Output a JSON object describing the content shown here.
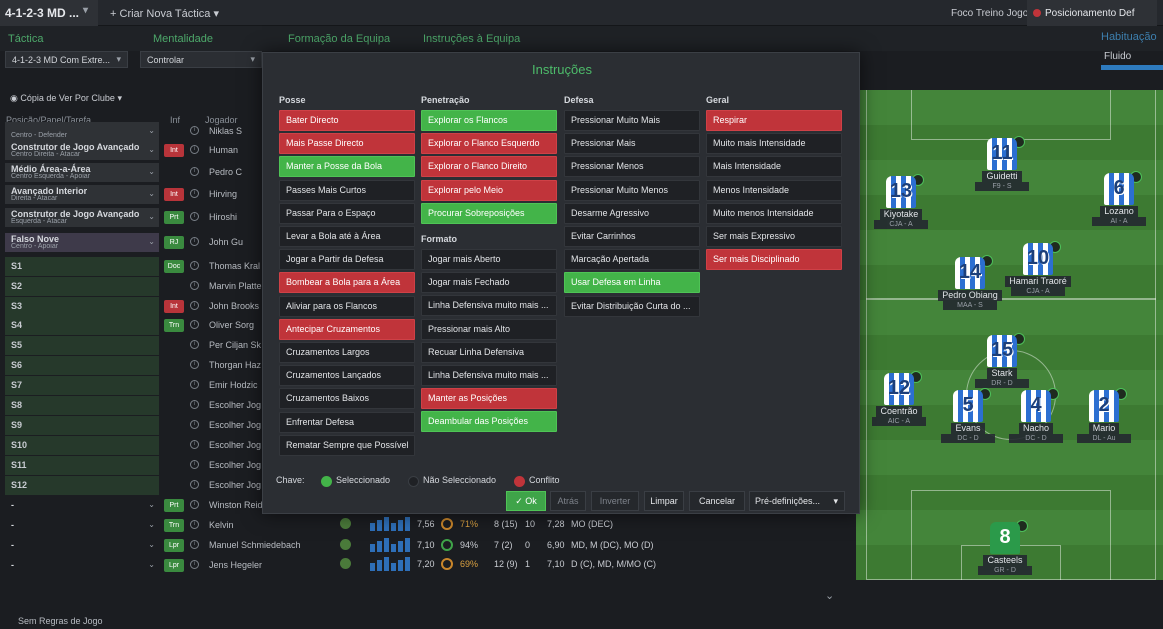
{
  "topbar": {
    "tactic_name": "4-1-2-3 MD ...",
    "new_tactic": "Criar Nova Táctica",
    "focus": "Foco Treino Jogo",
    "position": "Posicionamento Def"
  },
  "tabs": [
    "Táctica",
    "Mentalidade",
    "Formação da Equipa",
    "Instruções à Equipa"
  ],
  "habituation": {
    "label": "Habituação",
    "level": "Fluido"
  },
  "dropdowns": {
    "formation": "4-1-2-3 MD Com Extre...",
    "mentality": "Controlar"
  },
  "copy_label": "Cópia de Ver Por Clube",
  "table": {
    "col_position": "Posição/Papel/Tarefa",
    "col_inf": "Inf",
    "col_player": "Jogador",
    "rows": [
      {
        "pos": "",
        "role": "Centro - Defender",
        "inf": "",
        "name": "Niklas S"
      },
      {
        "pos": "Construtor de Jogo Avançado",
        "role": "Centro Direita - Atacar",
        "inf": "Int",
        "name": "Human"
      },
      {
        "pos": "Médio Área-a-Área",
        "role": "Centro Esquerda - Apoiar",
        "inf": "",
        "name": "Pedro C"
      },
      {
        "pos": "Avançado Interior",
        "role": "Direita - Atacar",
        "inf": "Int",
        "name": "Hirving"
      },
      {
        "pos": "Construtor de Jogo Avançado",
        "role": "Esquerda - Atacar",
        "inf": "Prt",
        "name": "Hiroshi"
      },
      {
        "pos": "Falso Nove",
        "role": "Centro - Apoiar",
        "inf": "RJ",
        "name": "John Gu"
      },
      {
        "pos": "S1",
        "role": "",
        "inf": "Doc",
        "name": "Thomas Kral"
      },
      {
        "pos": "S2",
        "role": "",
        "inf": "",
        "name": "Marvin Platte"
      },
      {
        "pos": "S3",
        "role": "",
        "inf": "Int",
        "name": "John Brooks"
      },
      {
        "pos": "S4",
        "role": "",
        "inf": "Trn",
        "name": "Oliver Sorg"
      },
      {
        "pos": "S5",
        "role": "",
        "inf": "",
        "name": "Per Ciljan Sk"
      },
      {
        "pos": "S6",
        "role": "",
        "inf": "",
        "name": "Thorgan Haz"
      },
      {
        "pos": "S7",
        "role": "",
        "inf": "",
        "name": "Emir Hodzic"
      },
      {
        "pos": "S8",
        "role": "",
        "inf": "",
        "name": "Escolher Jog"
      },
      {
        "pos": "S9",
        "role": "",
        "inf": "",
        "name": "Escolher Jog"
      },
      {
        "pos": "S10",
        "role": "",
        "inf": "",
        "name": "Escolher Jog"
      },
      {
        "pos": "S11",
        "role": "",
        "inf": "",
        "name": "Escolher Jog"
      },
      {
        "pos": "S12",
        "role": "",
        "inf": "",
        "name": "Escolher Jog"
      },
      {
        "pos": "-",
        "role": "",
        "inf": "Prt",
        "name": "Winston Reid"
      },
      {
        "pos": "-",
        "role": "",
        "inf": "Trn",
        "name": "Kelvin"
      },
      {
        "pos": "-",
        "role": "",
        "inf": "Lpr",
        "name": "Manuel Schmiedebach"
      },
      {
        "pos": "-",
        "role": "",
        "inf": "Lpr",
        "name": "Jens Hegeler"
      }
    ],
    "stat_rows": [
      {
        "rating": "7,56",
        "cond": "71%",
        "apps": "8 (15)",
        "gls": "10",
        "avg": "7,28",
        "pos": "MO (DEC)"
      },
      {
        "rating": "7,10",
        "cond": "94%",
        "apps": "7 (2)",
        "gls": "0",
        "avg": "6,90",
        "pos": "MD, M (DC), MO (D)"
      },
      {
        "rating": "7,20",
        "cond": "69%",
        "apps": "12 (9)",
        "gls": "1",
        "avg": "7,10",
        "pos": "D (C), MD, M/MO (C)"
      }
    ]
  },
  "modal": {
    "title": "Instruções",
    "columns": {
      "posse": {
        "title": "Posse",
        "items": [
          {
            "label": "Bater Directo",
            "state": "r"
          },
          {
            "label": "Mais Passe Directo",
            "state": "r"
          },
          {
            "label": "Manter a Posse da Bola",
            "state": "g"
          },
          {
            "label": "Passes Mais Curtos",
            "state": ""
          },
          {
            "label": "Passar Para o Espaço",
            "state": ""
          },
          {
            "label": "Levar a Bola até à Área",
            "state": ""
          },
          {
            "label": "Jogar a Partir da Defesa",
            "state": ""
          },
          {
            "label": "Bombear a Bola para a Área",
            "state": "r"
          },
          {
            "label": "Aliviar para os Flancos",
            "state": ""
          },
          {
            "label": "Antecipar Cruzamentos",
            "state": "r"
          },
          {
            "label": "Cruzamentos Largos",
            "state": ""
          },
          {
            "label": "Cruzamentos Lançados",
            "state": ""
          },
          {
            "label": "Cruzamentos Baixos",
            "state": ""
          },
          {
            "label": "Enfrentar Defesa",
            "state": ""
          },
          {
            "label": "Rematar Sempre que Possível",
            "state": ""
          }
        ]
      },
      "penetracao": {
        "title": "Penetração",
        "items": [
          {
            "label": "Explorar os Flancos",
            "state": "g"
          },
          {
            "label": "Explorar o Flanco Esquerdo",
            "state": "r"
          },
          {
            "label": "Explorar o Flanco Direito",
            "state": "r"
          },
          {
            "label": "Explorar pelo Meio",
            "state": "r"
          },
          {
            "label": "Procurar Sobreposições",
            "state": "g"
          }
        ]
      },
      "formato": {
        "title": "Formato",
        "items": [
          {
            "label": "Jogar mais Aberto",
            "state": ""
          },
          {
            "label": "Jogar mais Fechado",
            "state": ""
          },
          {
            "label": "Linha Defensiva muito mais ...",
            "state": ""
          },
          {
            "label": "Pressionar mais Alto",
            "state": ""
          },
          {
            "label": "Recuar Linha Defensiva",
            "state": ""
          },
          {
            "label": "Linha Defensiva muito mais ...",
            "state": ""
          },
          {
            "label": "Manter as Posições",
            "state": "r"
          },
          {
            "label": "Deambular das Posições",
            "state": "g"
          }
        ]
      },
      "defesa": {
        "title": "Defesa",
        "items": [
          {
            "label": "Pressionar Muito Mais",
            "state": ""
          },
          {
            "label": "Pressionar Mais",
            "state": ""
          },
          {
            "label": "Pressionar Menos",
            "state": ""
          },
          {
            "label": "Pressionar Muito Menos",
            "state": ""
          },
          {
            "label": "Desarme Agressivo",
            "state": ""
          },
          {
            "label": "Evitar Carrinhos",
            "state": ""
          },
          {
            "label": "Marcação Apertada",
            "state": ""
          },
          {
            "label": "Usar Defesa em Linha",
            "state": "g"
          },
          {
            "label": "Evitar Distribuição Curta do ...",
            "state": ""
          }
        ]
      },
      "geral": {
        "title": "Geral",
        "items": [
          {
            "label": "Respirar",
            "state": "r"
          },
          {
            "label": "Muito mais Intensidade",
            "state": ""
          },
          {
            "label": "Mais Intensidade",
            "state": ""
          },
          {
            "label": "Menos Intensidade",
            "state": ""
          },
          {
            "label": "Muito menos Intensidade",
            "state": ""
          },
          {
            "label": "Ser mais Expressivo",
            "state": ""
          },
          {
            "label": "Ser mais Disciplinado",
            "state": "r"
          }
        ]
      }
    },
    "legend": {
      "key": "Chave:",
      "selected": "Seleccionado",
      "not_selected": "Não Seleccionado",
      "conflict": "Conflito"
    },
    "buttons": {
      "ok": "Ok",
      "back": "Atrás",
      "invert": "Inverter",
      "clear": "Limpar",
      "cancel": "Cancelar",
      "presets": "Pré-definições..."
    }
  },
  "pitch_players": [
    {
      "num": "11",
      "name": "Guidetti",
      "role": "F9 - S"
    },
    {
      "num": "13",
      "name": "Kiyotake",
      "role": "CJA - A"
    },
    {
      "num": "6",
      "name": "Lozano",
      "role": "AI - A"
    },
    {
      "num": "14",
      "name": "Pedro Obiang",
      "role": "MAA - S"
    },
    {
      "num": "10",
      "name": "Hamari Traoré",
      "role": "CJA - A"
    },
    {
      "num": "15",
      "name": "Stark",
      "role": "DR - D"
    },
    {
      "num": "12",
      "name": "Coentrão",
      "role": "AIC - A"
    },
    {
      "num": "5",
      "name": "Evans",
      "role": "DC - D"
    },
    {
      "num": "4",
      "name": "Nacho",
      "role": "DC - D"
    },
    {
      "num": "2",
      "name": "Mario",
      "role": "DL - Au"
    },
    {
      "num": "8",
      "name": "Casteels",
      "role": "GR - D"
    }
  ],
  "footer": "Sem Regras de Jogo",
  "colors": {
    "green": "#43b449",
    "red": "#c0343a",
    "accent": "#4dbb6a"
  }
}
